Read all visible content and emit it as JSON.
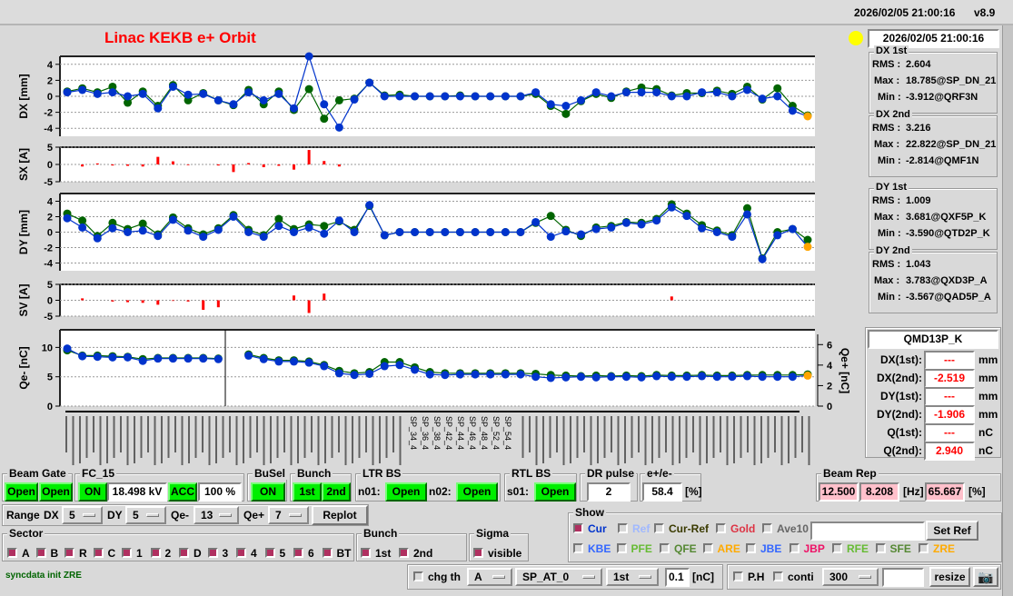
{
  "header": {
    "datetime": "2026/02/05 21:00:16",
    "version": "v8.9"
  },
  "title": "Linac KEKB e+ Orbit",
  "clock": {
    "datetime": "2026/02/05 21:00:16",
    "indicator_color": "#ffff00"
  },
  "stats": [
    {
      "title": "DX 1st",
      "rms_label": "RMS :",
      "rms": "2.604",
      "max_label": "Max :",
      "max": "18.785@SP_DN_21",
      "min_label": "Min :",
      "min": "-3.912@QRF3N"
    },
    {
      "title": "DX 2nd",
      "rms_label": "RMS :",
      "rms": "3.216",
      "max_label": "Max :",
      "max": "22.822@SP_DN_21",
      "min_label": "Min :",
      "min": "-2.814@QMF1N"
    },
    {
      "title": "DY 1st",
      "rms_label": "RMS :",
      "rms": "1.009",
      "max_label": "Max :",
      "max": "3.681@QXF5P_K",
      "min_label": "Min :",
      "min": "-3.590@QTD2P_K"
    },
    {
      "title": "DY 2nd",
      "rms_label": "RMS :",
      "rms": "1.043",
      "max_label": "Max :",
      "max": "3.783@QXD3P_A",
      "min_label": "Min :",
      "min": "-3.567@QAD5P_A"
    }
  ],
  "element": {
    "name": "QMD13P_K",
    "rows": [
      {
        "label": "DX(1st):",
        "value": "---",
        "unit": "mm"
      },
      {
        "label": "DX(2nd):",
        "value": "-2.519",
        "unit": "mm"
      },
      {
        "label": "DY(1st):",
        "value": "---",
        "unit": "mm"
      },
      {
        "label": "DY(2nd):",
        "value": "-1.906",
        "unit": "mm"
      },
      {
        "label": "Q(1st):",
        "value": "---",
        "unit": "nC"
      },
      {
        "label": "Q(2nd):",
        "value": "2.940",
        "unit": "nC"
      }
    ]
  },
  "plots": {
    "colors": {
      "first": "#006400",
      "second": "#0033cc",
      "steer": "#ff0000",
      "last": "#ffa500",
      "sigma": "#ffb6c1"
    },
    "dx": {
      "ylabel": "DX [mm]",
      "ylim": [
        -5,
        5
      ],
      "ticks": [
        "4",
        "2",
        "0",
        "-2",
        "-4"
      ],
      "first": [
        0.6,
        1.0,
        0.5,
        1.2,
        -0.8,
        0.6,
        -1.2,
        1.4,
        -0.5,
        0.4,
        -0.5,
        -1.1,
        0.8,
        -1.0,
        0.6,
        -1.7,
        0.9,
        -2.8,
        -0.5,
        -0.3,
        1.7,
        0.1,
        0.2,
        0,
        0,
        0,
        0.1,
        0,
        0,
        0,
        0,
        0.3,
        -1.2,
        -2.2,
        -0.6,
        0.3,
        -0.2,
        0.6,
        1.1,
        0.9,
        0.1,
        0.4,
        0.4,
        0.7,
        0.3,
        1.2,
        -0.4,
        1.0,
        -1.2,
        -2.4
      ],
      "second": [
        0.5,
        0.8,
        0.3,
        0.5,
        0,
        0.3,
        -1.5,
        1.2,
        0.2,
        0.3,
        -0.5,
        -1.0,
        0.5,
        -0.5,
        0.3,
        -1.5,
        5.0,
        -1.0,
        -3.9,
        -0.4,
        1.7,
        0,
        0,
        0,
        0,
        0,
        0,
        0,
        0,
        0,
        0,
        0.5,
        -1.0,
        -1.2,
        -0.5,
        0.5,
        0,
        0.5,
        0.5,
        0.5,
        0,
        0,
        0.5,
        0.5,
        0,
        0.8,
        -0.3,
        0,
        -1.8,
        -2.5
      ]
    },
    "sx": {
      "ylabel": "SX [A]",
      "ylim": [
        -5,
        5
      ],
      "ticks": [
        "5",
        "0",
        "-5"
      ],
      "values": [
        0,
        -0.6,
        0.3,
        -0.3,
        -0.4,
        -0.6,
        2.2,
        0.9,
        -0.2,
        0,
        -0.3,
        -2.2,
        0.4,
        -0.8,
        -0.4,
        -1.5,
        4.2,
        1.0,
        -0.6,
        0,
        0,
        0,
        0,
        0,
        0,
        0,
        0,
        0,
        0,
        0,
        0,
        0,
        0,
        0,
        0,
        0,
        0,
        0,
        0,
        0,
        0,
        0,
        0,
        0,
        0,
        0,
        0,
        0,
        0,
        0
      ]
    },
    "dy": {
      "ylabel": "DY [mm]",
      "ylim": [
        -5,
        5
      ],
      "ticks": [
        "4",
        "2",
        "0",
        "-2",
        "-4"
      ],
      "first": [
        2.4,
        1.5,
        -0.5,
        1.2,
        0.4,
        1.1,
        -0.3,
        1.9,
        0.5,
        -0.3,
        0.5,
        2.2,
        0.3,
        -0.4,
        1.7,
        0.4,
        1.0,
        0.8,
        1.4,
        0.3,
        3.4,
        -0.4,
        0,
        0,
        0,
        0,
        0,
        0,
        0,
        0,
        0,
        1.2,
        2.1,
        0.3,
        -0.5,
        0.6,
        0.8,
        1.3,
        1.2,
        1.7,
        3.6,
        2.4,
        0.9,
        0.2,
        -0.4,
        3.1,
        -3.4,
        0,
        0.4,
        -1.0
      ],
      "second": [
        1.8,
        0.6,
        -0.8,
        0.5,
        0,
        0.2,
        -0.5,
        1.6,
        0.2,
        -0.6,
        0.3,
        2.0,
        0,
        -0.6,
        0.8,
        0,
        0.6,
        -0.2,
        1.5,
        0,
        3.5,
        -0.4,
        0,
        0,
        0,
        0,
        0,
        0,
        0,
        0,
        0,
        1.3,
        -0.6,
        0.1,
        -0.3,
        0.4,
        0.6,
        1.2,
        1.0,
        1.5,
        3.2,
        2.1,
        0.5,
        0,
        -0.6,
        2.3,
        -3.5,
        -0.4,
        0.4,
        -1.9
      ]
    },
    "sv": {
      "ylabel": "SV [A]",
      "ylim": [
        -5,
        5
      ],
      "ticks": [
        "5",
        "0",
        "-5"
      ],
      "values": [
        0,
        0.6,
        0,
        -0.4,
        -0.6,
        -0.8,
        -1.4,
        -0.2,
        -0.4,
        -3.0,
        -2.2,
        0,
        0,
        0,
        0,
        1.5,
        -4.0,
        2.1,
        0,
        0,
        0,
        0,
        0,
        0,
        0,
        0,
        0,
        0,
        0,
        0,
        0,
        0,
        0,
        0,
        0,
        0,
        0,
        0,
        0,
        0,
        1.2,
        0,
        0,
        0,
        0,
        0,
        0,
        0,
        0,
        0
      ]
    },
    "q": {
      "ylabel": "Qe- [nC]",
      "ylim": [
        0,
        13
      ],
      "ticks": [
        "10",
        "5",
        "0"
      ],
      "right_label": "Qe+ [nC]",
      "right_ylim": [
        0,
        7
      ],
      "right_ticks": [
        "6",
        "4",
        "2",
        "0"
      ],
      "first": [
        9.5,
        8.6,
        8.6,
        8.5,
        8.4,
        8.0,
        8.2,
        8.2,
        8.2,
        8.2,
        8.1,
        null,
        8.8,
        8.2,
        7.8,
        7.8,
        7.6,
        7.0,
        6.0,
        5.6,
        5.8,
        7.5,
        7.5,
        6.6,
        5.8,
        5.6,
        5.6,
        5.6,
        5.6,
        5.6,
        5.6,
        5.5,
        5.3,
        5.2,
        5.1,
        5.2,
        5.1,
        5.2,
        5.1,
        5.3,
        5.2,
        5.2,
        5.3,
        5.2,
        5.2,
        5.3,
        5.3,
        5.3,
        5.3,
        5.4
      ],
      "second": [
        9.8,
        8.5,
        8.4,
        8.3,
        8.3,
        7.7,
        8.1,
        8.1,
        8.1,
        8.1,
        8.0,
        null,
        8.6,
        8.0,
        7.6,
        7.6,
        7.4,
        6.8,
        5.6,
        5.3,
        5.5,
        6.8,
        7.0,
        6.2,
        5.4,
        5.3,
        5.4,
        5.4,
        5.4,
        5.4,
        5.4,
        5.0,
        4.8,
        4.9,
        5.0,
        4.9,
        5.0,
        5.0,
        4.9,
        5.1,
        5.0,
        5.0,
        5.1,
        5.0,
        5.0,
        5.1,
        5.0,
        5.0,
        5.0,
        5.2
      ]
    },
    "xlabels": [
      "SP_34_4",
      "SP_36_4",
      "SP_38_4",
      "SP_42_4",
      "SP_44_4",
      "SP_46_4",
      "SP_48_4",
      "SP_52_4",
      "SP_54_4"
    ]
  },
  "controls": {
    "beam_gate": {
      "label": "Beam Gate",
      "b1": "Open",
      "b2": "Open"
    },
    "fc15": {
      "label": "FC_15",
      "on": "ON",
      "kv": "18.498 kV",
      "acc": "ACC",
      "pct": "100 %"
    },
    "busel": {
      "label": "BuSel",
      "on": "ON"
    },
    "bunch": {
      "label": "Bunch",
      "b1": "1st",
      "b2": "2nd"
    },
    "ltr": {
      "label": "LTR BS",
      "n01": "n01:",
      "n01v": "Open",
      "n02": "n02:",
      "n02v": "Open"
    },
    "rtl": {
      "label": "RTL BS",
      "s01": "s01:",
      "s01v": "Open"
    },
    "dr": {
      "label": "DR pulse",
      "value": "2"
    },
    "ratio": {
      "label": "e+/e-",
      "value": "58.4",
      "unit": "[%]"
    },
    "rep": {
      "label": "Beam Rep",
      "v1": "12.500",
      "v2": "8.208",
      "hz": "[Hz]",
      "v3": "65.667",
      "pct": "[%]"
    },
    "range": {
      "label": "Range",
      "dx": "DX",
      "dxv": "5",
      "dy": "DY",
      "dyv": "5",
      "qm": "Qe-",
      "qmv": "13",
      "qp": "Qe+",
      "qpv": "7",
      "replot": "Replot"
    },
    "sector": {
      "label": "Sector",
      "items": [
        "A",
        "B",
        "R",
        "C",
        "1",
        "2",
        "D",
        "3",
        "4",
        "5",
        "6",
        "BT"
      ]
    },
    "bunch2": {
      "label": "Bunch",
      "items": [
        "1st",
        "2nd"
      ]
    },
    "sigma": {
      "label": "Sigma",
      "item": "visible"
    },
    "show": {
      "label": "Show",
      "row1": [
        {
          "t": "Cur",
          "c": "#0033cc",
          "on": true
        },
        {
          "t": "Ref",
          "c": "#a0b8ff",
          "on": false
        },
        {
          "t": "Cur-Ref",
          "c": "#3a3a00",
          "on": false
        },
        {
          "t": "Gold",
          "c": "#dd3344",
          "on": false
        },
        {
          "t": "Ave10",
          "c": "#666666",
          "on": false
        }
      ],
      "setref": "Set Ref",
      "row2": [
        {
          "t": "KBE",
          "c": "#3366ff"
        },
        {
          "t": "PFE",
          "c": "#66bb33"
        },
        {
          "t": "QFE",
          "c": "#558833"
        },
        {
          "t": "ARE",
          "c": "#ffaa00"
        },
        {
          "t": "JBE",
          "c": "#3366ff"
        },
        {
          "t": "JBP",
          "c": "#ee1166"
        },
        {
          "t": "RFE",
          "c": "#66bb33"
        },
        {
          "t": "SFE",
          "c": "#558833"
        },
        {
          "t": "ZRE",
          "c": "#ffaa00"
        }
      ]
    },
    "status": "syncdata init ZRE",
    "bottom": {
      "chgth": "chg th",
      "sel1": "A",
      "sel2": "SP_AT_0",
      "sel3": "1st",
      "thr": "0.1",
      "unit": "[nC]",
      "ph": "P.H",
      "conti": "conti",
      "sel4": "300",
      "resize": "resize"
    }
  }
}
